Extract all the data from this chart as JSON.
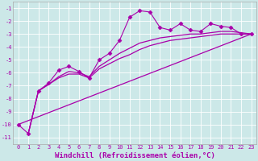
{
  "xlabel": "Windchill (Refroidissement éolien,°C)",
  "background_color": "#cce8e8",
  "grid_color": "#ffffff",
  "line_color": "#aa00aa",
  "xlim": [
    -0.5,
    23.5
  ],
  "ylim": [
    -11.5,
    -0.5
  ],
  "xticks": [
    0,
    1,
    2,
    3,
    4,
    5,
    6,
    7,
    8,
    9,
    10,
    11,
    12,
    13,
    14,
    15,
    16,
    17,
    18,
    19,
    20,
    21,
    22,
    23
  ],
  "yticks": [
    -1,
    -2,
    -3,
    -4,
    -5,
    -6,
    -7,
    -8,
    -9,
    -10,
    -11
  ],
  "series": [
    {
      "x": [
        0,
        1,
        2,
        3,
        4,
        5,
        6,
        7,
        8,
        9,
        10,
        11,
        12,
        13,
        14,
        15,
        16,
        17,
        18,
        19,
        20,
        21,
        22,
        23
      ],
      "y": [
        -10.0,
        -10.7,
        -7.4,
        -6.8,
        -5.8,
        -5.5,
        -5.9,
        -6.4,
        -5.0,
        -4.5,
        -3.5,
        -1.7,
        -1.2,
        -1.3,
        -2.5,
        -2.7,
        -2.2,
        -2.7,
        -2.8,
        -2.2,
        -2.4,
        -2.5,
        -3.0,
        -3.0
      ],
      "marker": "D",
      "markersize": 2.5,
      "linewidth": 0.8
    },
    {
      "x": [
        1,
        2,
        3,
        4,
        5,
        6,
        7,
        8,
        9,
        10,
        11,
        12,
        13,
        14,
        15,
        16,
        17,
        18,
        19,
        20,
        21,
        22,
        23
      ],
      "y": [
        -10.7,
        -7.4,
        -6.9,
        -6.3,
        -5.9,
        -6.0,
        -6.3,
        -5.5,
        -5.0,
        -4.5,
        -4.1,
        -3.7,
        -3.5,
        -3.3,
        -3.2,
        -3.1,
        -3.0,
        -3.0,
        -2.9,
        -2.8,
        -2.8,
        -2.9,
        -3.0
      ],
      "marker": null,
      "linewidth": 0.9,
      "linestyle": "-"
    },
    {
      "x": [
        1,
        2,
        3,
        4,
        5,
        6,
        7,
        8,
        9,
        10,
        11,
        12,
        13,
        14,
        15,
        16,
        17,
        18,
        19,
        20,
        21,
        22,
        23
      ],
      "y": [
        -10.7,
        -7.4,
        -6.9,
        -6.4,
        -6.1,
        -6.1,
        -6.4,
        -5.7,
        -5.3,
        -4.9,
        -4.6,
        -4.2,
        -3.9,
        -3.7,
        -3.5,
        -3.4,
        -3.3,
        -3.2,
        -3.1,
        -3.0,
        -3.0,
        -3.0,
        -3.0
      ],
      "marker": null,
      "linewidth": 0.9,
      "linestyle": "-"
    },
    {
      "x": [
        0,
        23
      ],
      "y": [
        -10.0,
        -3.0
      ],
      "marker": null,
      "linewidth": 0.9,
      "linestyle": "-"
    }
  ],
  "tick_fontsize": 5.0,
  "xlabel_fontsize": 6.5,
  "figsize": [
    3.2,
    2.0
  ],
  "dpi": 100
}
